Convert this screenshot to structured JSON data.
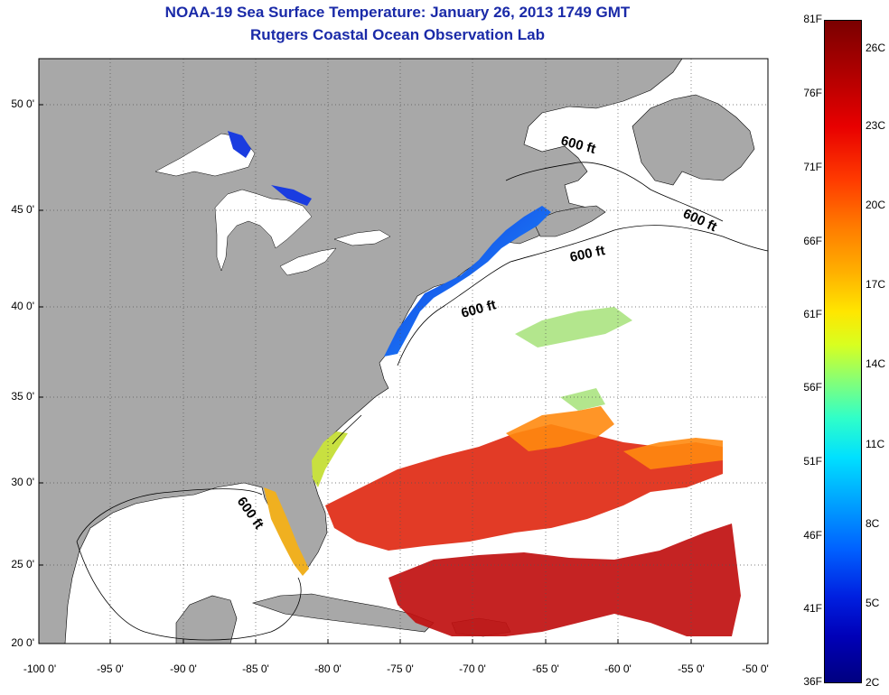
{
  "title_line1": "NOAA-19 Sea Surface Temperature:  January 26, 2013 1749 GMT",
  "title_line2": "Rutgers Coastal Ocean Observation Lab",
  "map": {
    "lat_labels": [
      "50 0'",
      "45 0'",
      "40 0'",
      "35 0'",
      "30 0'",
      "25 0'",
      "20 0'"
    ],
    "lon_labels": [
      "-100 0'",
      "-95 0'",
      "-90 0'",
      "-85 0'",
      "-80 0'",
      "-75 0'",
      "-70 0'",
      "-65 0'",
      "-60 0'",
      "-55 0'",
      "-50 0'"
    ],
    "isobath_labels": [
      "600 ft",
      "600 ft",
      "600 ft",
      "600 ft",
      "600 ft"
    ],
    "colors": {
      "land": "#a8a8a8",
      "title": "#1a2aa8",
      "grid": "#555555"
    }
  },
  "colorbar": {
    "fahrenheit_labels": [
      "81F",
      "76F",
      "71F",
      "66F",
      "61F",
      "56F",
      "51F",
      "46F",
      "41F",
      "36F"
    ],
    "celsius_labels": [
      "26C",
      "23C",
      "20C",
      "17C",
      "14C",
      "11C",
      "8C",
      "5C",
      "2C"
    ]
  }
}
